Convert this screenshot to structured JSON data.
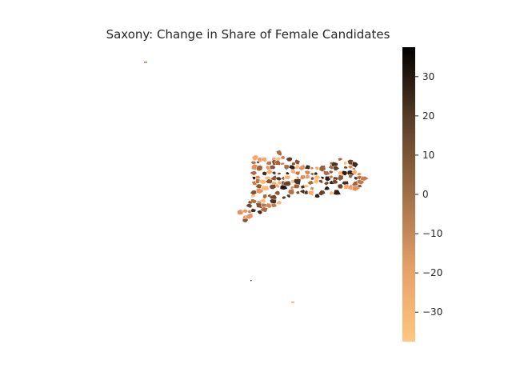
{
  "title": "Saxony: Change in Share of Female Candidates",
  "colorbar": {
    "colormap": "copper_r",
    "min": -37.5,
    "max": 37.5,
    "ticks": [
      30,
      20,
      10,
      0,
      -10,
      -20,
      -30
    ],
    "tick_labels": [
      "30",
      "20",
      "10",
      "0",
      "−10",
      "−20",
      "−30"
    ],
    "color_low": "#ffc77f",
    "color_high": "#000000"
  }
}
